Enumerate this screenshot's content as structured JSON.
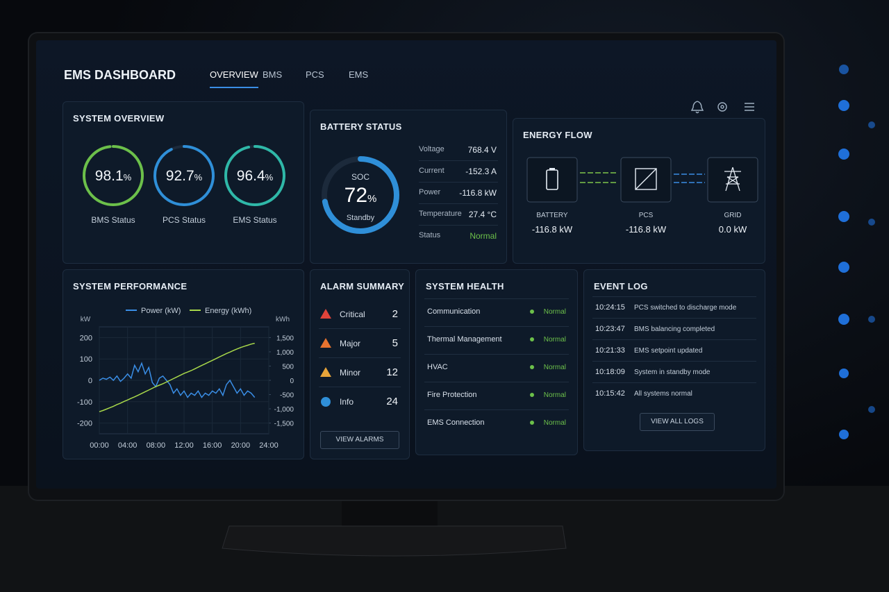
{
  "header": {
    "title": "EMS DASHBOARD",
    "tabs": [
      "OVERVIEW",
      "BMS",
      "PCS",
      "EMS"
    ],
    "active_tab": 0
  },
  "system_overview": {
    "title": "SYSTEM OVERVIEW",
    "gauges": [
      {
        "value": 98.1,
        "unit": "%",
        "label": "BMS Status",
        "color": "#6cc04a"
      },
      {
        "value": 92.7,
        "unit": "%",
        "label": "PCS Status",
        "color": "#2f8fd8"
      },
      {
        "value": 96.4,
        "unit": "%",
        "label": "EMS Status",
        "color": "#2fb8a8"
      }
    ]
  },
  "battery_status": {
    "title": "BATTERY STATUS",
    "soc": {
      "label": "SOC",
      "value": 72,
      "unit": "%",
      "state": "Standby",
      "color": "#2f8fd8"
    },
    "metrics": [
      {
        "label": "Voltage",
        "value": "768.4 V"
      },
      {
        "label": "Current",
        "value": "-152.3 A"
      },
      {
        "label": "Power",
        "value": "-116.8 kW"
      },
      {
        "label": "Temperature",
        "value": "27.4 °C"
      },
      {
        "label": "Status",
        "value": "Normal"
      }
    ]
  },
  "energy_flow": {
    "title": "ENERGY FLOW",
    "nodes": [
      {
        "label": "BATTERY",
        "value": "-116.8 kW"
      },
      {
        "label": "PCS",
        "value": "-116.8 kW"
      },
      {
        "label": "GRID",
        "value": "0.0 kW"
      }
    ]
  },
  "chart_data": {
    "type": "line",
    "title": "SYSTEM PERFORMANCE",
    "y_label": "kW",
    "y2_label": "kWh",
    "grid": true,
    "x": [
      0,
      0.5,
      1,
      1.5,
      2,
      2.5,
      3,
      3.5,
      4,
      4.5,
      5,
      5.5,
      6,
      6.5,
      7,
      7.5,
      8,
      8.5,
      9,
      9.5,
      10,
      10.5,
      11,
      11.5,
      12,
      12.5,
      13,
      13.5,
      14,
      14.5,
      15,
      15.5,
      16,
      16.5,
      17,
      17.5,
      18,
      18.5,
      19,
      19.5,
      20,
      20.5,
      21,
      21.5,
      22
    ],
    "xlim": [
      0,
      24
    ],
    "xticks": [
      {
        "value": 0,
        "label": "00:00"
      },
      {
        "value": 4,
        "label": "04:00"
      },
      {
        "value": 8,
        "label": "08:00"
      },
      {
        "value": 12,
        "label": "12:00"
      },
      {
        "value": 16,
        "label": "16:00"
      },
      {
        "value": 20,
        "label": "20:00"
      },
      {
        "value": 24,
        "label": "24:00"
      }
    ],
    "ylim": [
      -250,
      250
    ],
    "yticks": [
      200,
      100,
      0,
      -100,
      -200
    ],
    "y2lim": [
      -1875,
      1875
    ],
    "y2ticks": [
      {
        "value": 1500,
        "label": "1,500"
      },
      {
        "value": 1000,
        "label": "1,000"
      },
      500,
      0,
      -500,
      {
        "value": -1000,
        "label": "-1,000"
      },
      {
        "value": -1500,
        "label": "-1,500"
      }
    ],
    "series": [
      {
        "name": "Power (kW)",
        "color": "#3a8ee6",
        "values": [
          0,
          10,
          5,
          15,
          0,
          20,
          -5,
          10,
          30,
          10,
          70,
          40,
          80,
          30,
          60,
          -10,
          -30,
          10,
          20,
          0,
          -20,
          -60,
          -40,
          -70,
          -50,
          -80,
          -60,
          -70,
          -50,
          -80,
          -60,
          -70,
          -50,
          -60,
          -40,
          -70,
          -20,
          0,
          -30,
          -60,
          -40,
          -70,
          -50,
          -60,
          -80
        ]
      },
      {
        "name": "Energy (kWh)",
        "color": "#a8d84a",
        "axis": "y2",
        "values": [
          -1100,
          -1060,
          -1010,
          -960,
          -910,
          -850,
          -800,
          -740,
          -690,
          -630,
          -580,
          -520,
          -460,
          -400,
          -340,
          -280,
          -220,
          -170,
          -120,
          -60,
          0,
          60,
          120,
          180,
          240,
          290,
          340,
          400,
          460,
          520,
          580,
          640,
          700,
          760,
          820,
          880,
          940,
          990,
          1050,
          1100,
          1150,
          1190,
          1230,
          1270,
          1300
        ]
      }
    ]
  },
  "alarm_summary": {
    "title": "ALARM SUMMARY",
    "items": [
      {
        "label": "Critical",
        "count": 2,
        "color": "#e0433a"
      },
      {
        "label": "Major",
        "count": 5,
        "color": "#e8732f"
      },
      {
        "label": "Minor",
        "count": 12,
        "color": "#e8a53a"
      },
      {
        "label": "Info",
        "count": 24,
        "color": "#2f8fd8"
      }
    ],
    "button": "VIEW ALARMS"
  },
  "system_health": {
    "title": "SYSTEM HEALTH",
    "items": [
      {
        "label": "Communication",
        "status": "Normal"
      },
      {
        "label": "Thermal Management",
        "status": "Normal"
      },
      {
        "label": "HVAC",
        "status": "Normal"
      },
      {
        "label": "Fire Protection",
        "status": "Normal"
      },
      {
        "label": "EMS Connection",
        "status": "Normal"
      }
    ]
  },
  "event_log": {
    "title": "EVENT LOG",
    "events": [
      {
        "time": "10:24:15",
        "message": "PCS switched to discharge mode"
      },
      {
        "time": "10:23:47",
        "message": "BMS balancing completed"
      },
      {
        "time": "10:21:33",
        "message": "EMS setpoint updated"
      },
      {
        "time": "10:18:09",
        "message": "System in standby mode"
      },
      {
        "time": "10:15:42",
        "message": "All systems normal"
      }
    ],
    "button": "VIEW ALL LOGS"
  }
}
